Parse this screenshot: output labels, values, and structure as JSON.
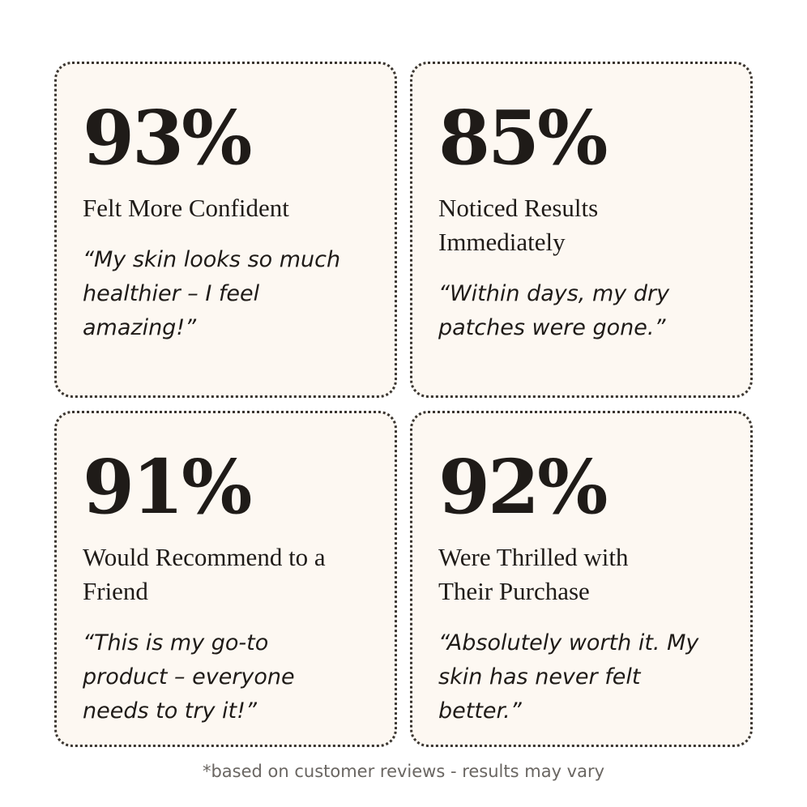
{
  "stats": [
    {
      "value": "93%",
      "label": "Felt More Confident",
      "quote": "“My skin looks so much healthier – I feel amazing!”"
    },
    {
      "value": "85%",
      "label": "Noticed Results Immediately",
      "quote": "“Within days, my dry patches were gone.”"
    },
    {
      "value": "91%",
      "label": "Would Recommend to a Friend",
      "quote": "“This is my go-to product – everyone needs to try it!”"
    },
    {
      "value": "92%",
      "label": "Were Thrilled with Their Purchase",
      "quote": "“Absolutely worth it. My skin has never felt better.”"
    }
  ],
  "footnote": "*based on customer reviews - results may vary",
  "colors": {
    "card_background": "#fdf8f2",
    "border": "#3a3530",
    "text": "#1f1b18",
    "footnote_text": "#6a6662"
  }
}
